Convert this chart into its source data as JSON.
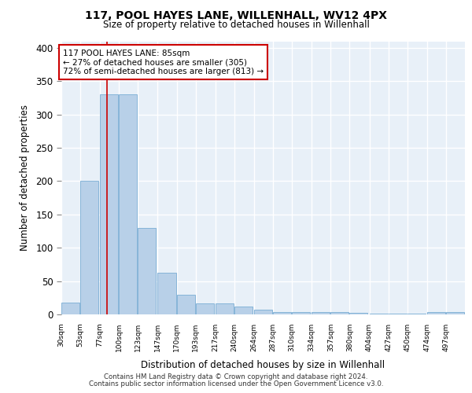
{
  "title": "117, POOL HAYES LANE, WILLENHALL, WV12 4PX",
  "subtitle": "Size of property relative to detached houses in Willenhall",
  "xlabel": "Distribution of detached houses by size in Willenhall",
  "ylabel": "Number of detached properties",
  "bar_color": "#b8d0e8",
  "bar_edge_color": "#7aadd4",
  "background_color": "#e8f0f8",
  "grid_color": "#ffffff",
  "annotation_line1": "117 POOL HAYES LANE: 85sqm",
  "annotation_line2": "← 27% of detached houses are smaller (305)",
  "annotation_line3": "72% of semi-detached houses are larger (813) →",
  "property_line_color": "#cc0000",
  "annotation_box_edge_color": "#cc0000",
  "footer1": "Contains HM Land Registry data © Crown copyright and database right 2024.",
  "footer2": "Contains public sector information licensed under the Open Government Licence v3.0.",
  "bins": [
    30,
    53,
    77,
    100,
    123,
    147,
    170,
    193,
    217,
    240,
    264,
    287,
    310,
    334,
    357,
    380,
    404,
    427,
    450,
    474,
    497
  ],
  "bar_heights": [
    18,
    200,
    330,
    330,
    130,
    62,
    29,
    16,
    16,
    12,
    7,
    4,
    4,
    3,
    3,
    2,
    1,
    1,
    1,
    4,
    4
  ],
  "ylim": [
    0,
    410
  ],
  "yticks": [
    0,
    50,
    100,
    150,
    200,
    250,
    300,
    350,
    400
  ],
  "property_sqm": 85
}
